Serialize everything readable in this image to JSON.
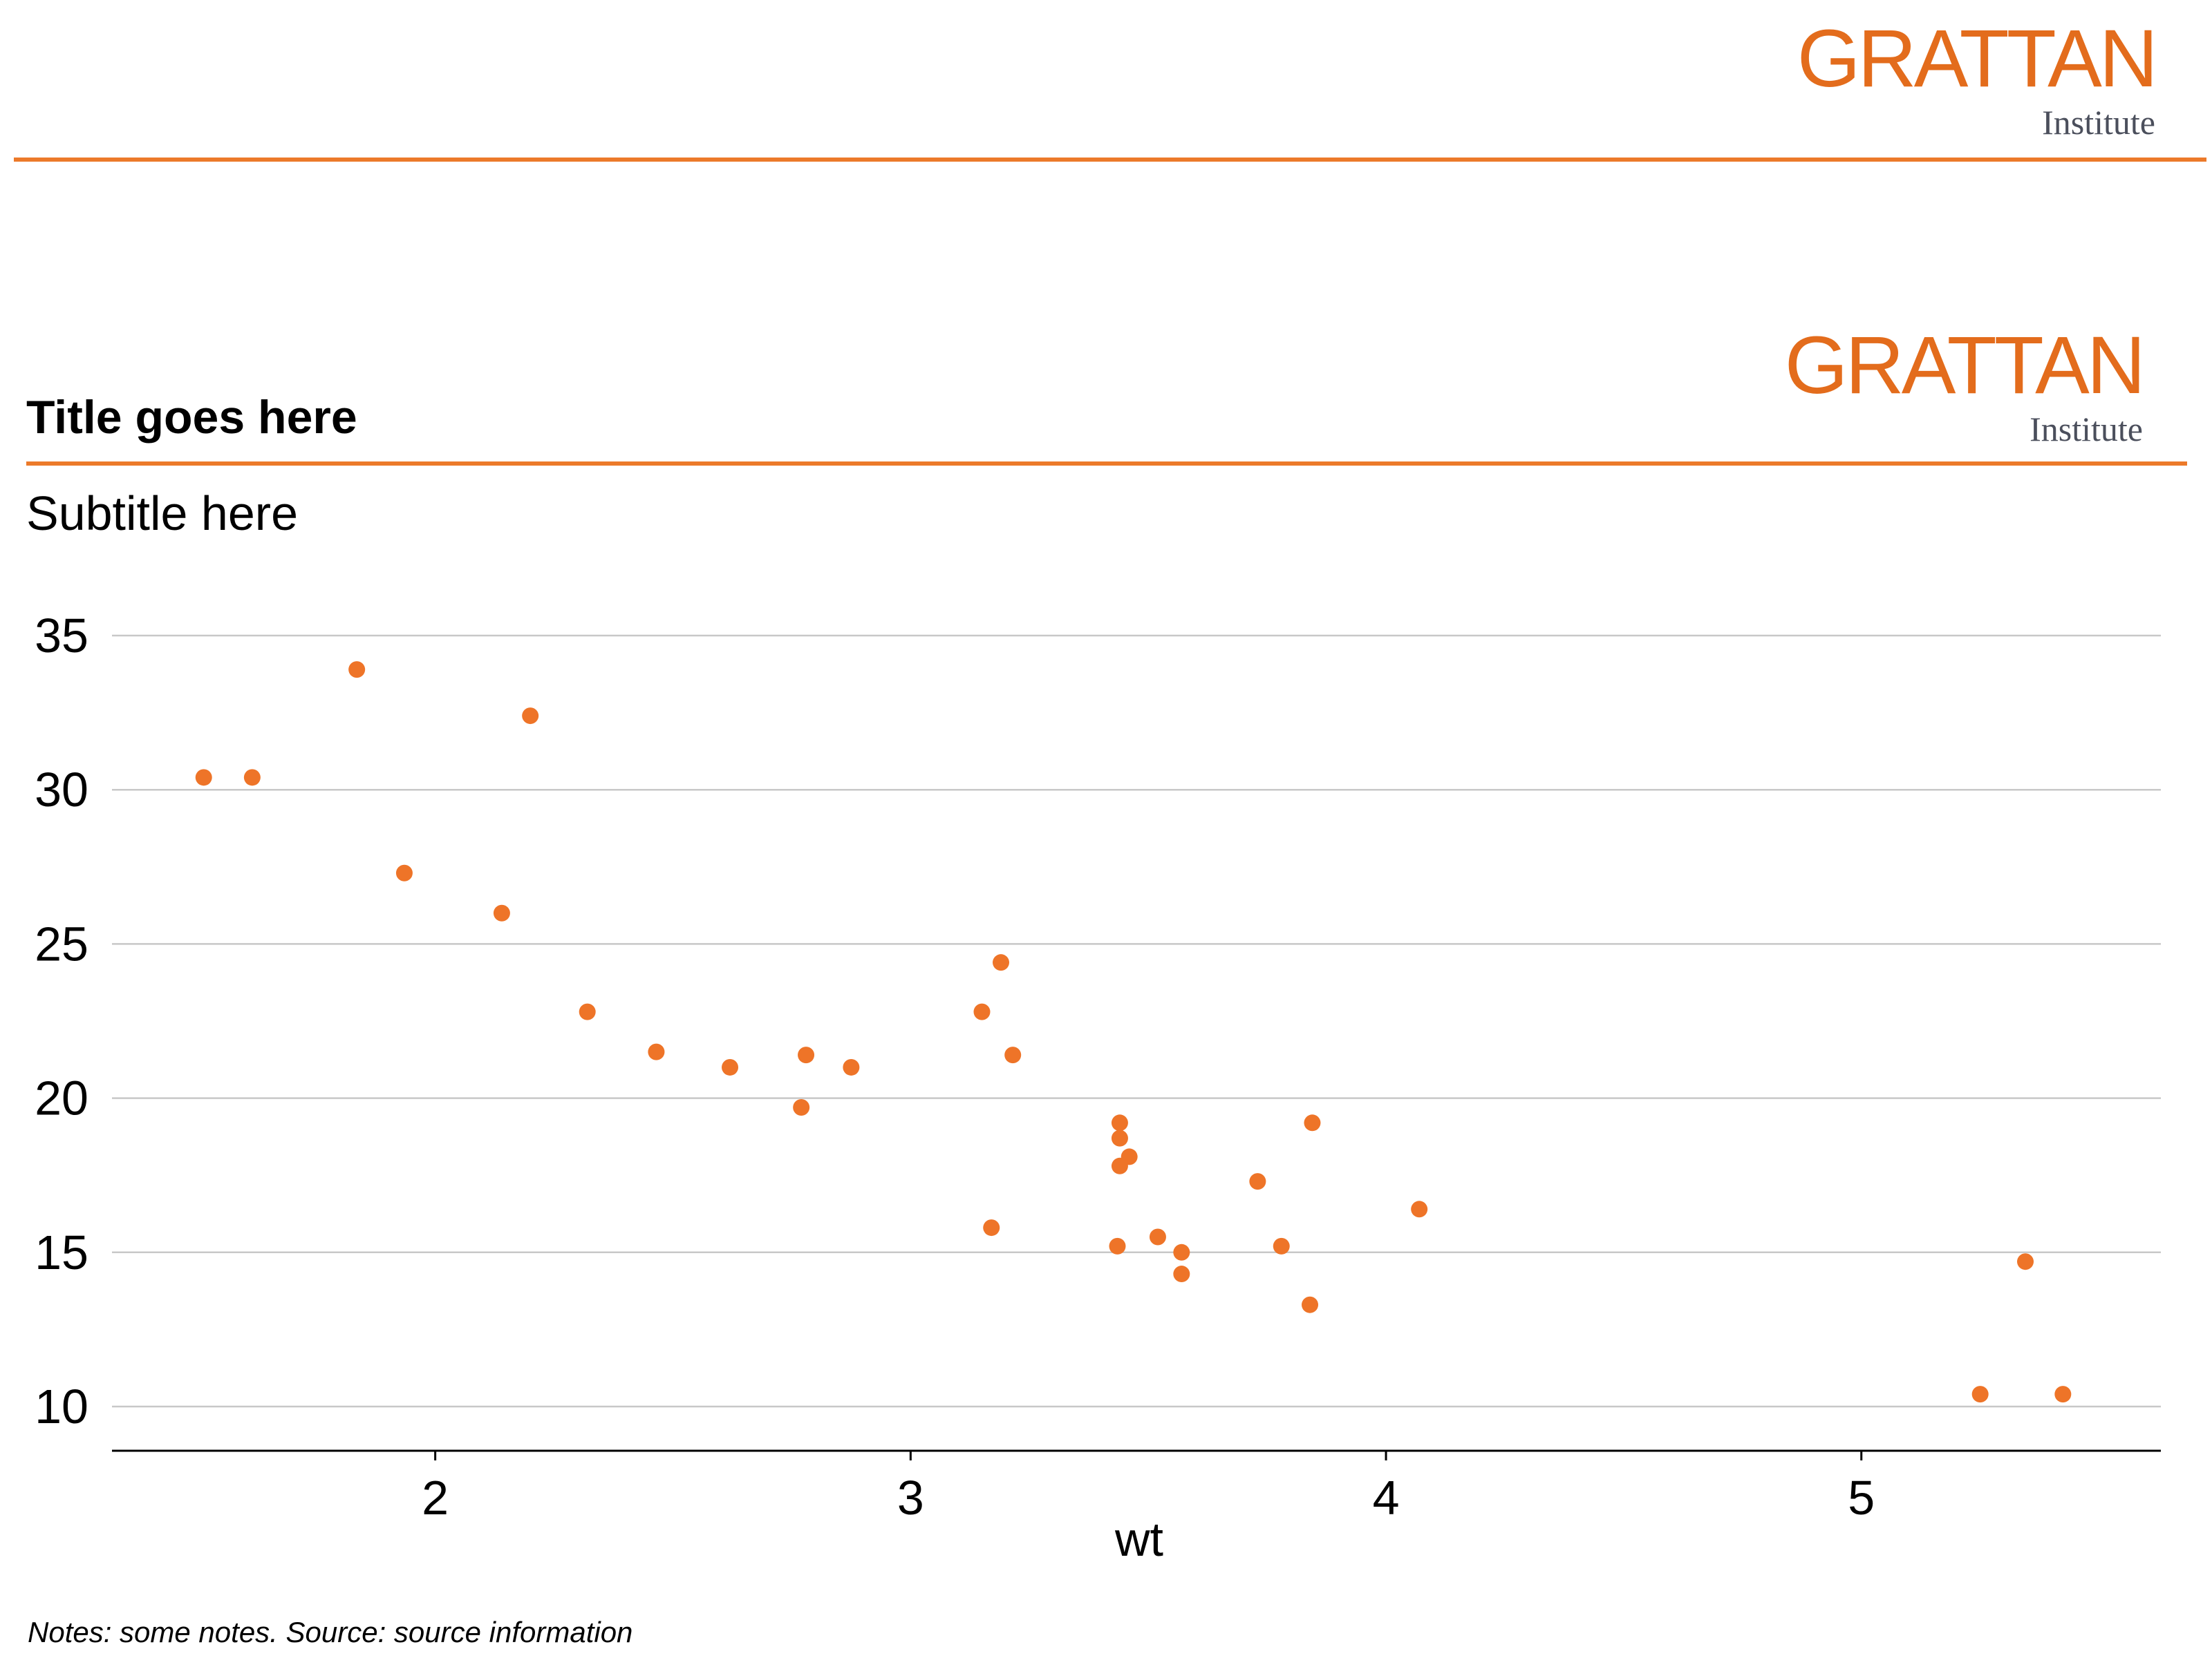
{
  "brand": {
    "name": "GRATTAN",
    "tagline": "Institute",
    "accent": "#e36c1c",
    "rule_color": "#ec7a2a",
    "point_color": "#ee7428",
    "grid_color": "#c8c8c8"
  },
  "header": {
    "title": "Title goes here",
    "subtitle": "Subtitle here"
  },
  "footer": {
    "notes": "Notes: some notes. Source: source information"
  },
  "chart_data": {
    "type": "scatter",
    "title": "Title goes here",
    "subtitle": "Subtitle here",
    "xlabel": "wt",
    "ylabel": "",
    "xlim": [
      1.32,
      5.63
    ],
    "ylim": [
      9.3,
      35
    ],
    "xticks": [
      2,
      3,
      4,
      5
    ],
    "yticks": [
      10,
      15,
      20,
      25,
      30,
      35
    ],
    "grid": "horizontal",
    "legend": "none",
    "points": [
      {
        "x": 1.513,
        "y": 30.4
      },
      {
        "x": 1.615,
        "y": 30.4
      },
      {
        "x": 1.835,
        "y": 33.9
      },
      {
        "x": 1.935,
        "y": 27.3
      },
      {
        "x": 2.14,
        "y": 26.0
      },
      {
        "x": 2.2,
        "y": 32.4
      },
      {
        "x": 2.32,
        "y": 22.8
      },
      {
        "x": 2.465,
        "y": 21.5
      },
      {
        "x": 2.62,
        "y": 21.0
      },
      {
        "x": 2.77,
        "y": 19.7
      },
      {
        "x": 2.78,
        "y": 21.4
      },
      {
        "x": 2.875,
        "y": 21.0
      },
      {
        "x": 3.15,
        "y": 22.8
      },
      {
        "x": 3.17,
        "y": 15.8
      },
      {
        "x": 3.19,
        "y": 24.4
      },
      {
        "x": 3.215,
        "y": 21.4
      },
      {
        "x": 3.435,
        "y": 15.2
      },
      {
        "x": 3.44,
        "y": 18.7
      },
      {
        "x": 3.44,
        "y": 19.2
      },
      {
        "x": 3.44,
        "y": 17.8
      },
      {
        "x": 3.46,
        "y": 18.1
      },
      {
        "x": 3.52,
        "y": 15.5
      },
      {
        "x": 3.57,
        "y": 15.0
      },
      {
        "x": 3.57,
        "y": 14.3
      },
      {
        "x": 3.73,
        "y": 17.3
      },
      {
        "x": 3.78,
        "y": 15.2
      },
      {
        "x": 3.84,
        "y": 13.3
      },
      {
        "x": 3.845,
        "y": 19.2
      },
      {
        "x": 4.07,
        "y": 16.4
      },
      {
        "x": 5.25,
        "y": 10.4
      },
      {
        "x": 5.345,
        "y": 14.7
      },
      {
        "x": 5.424,
        "y": 10.4
      }
    ]
  }
}
